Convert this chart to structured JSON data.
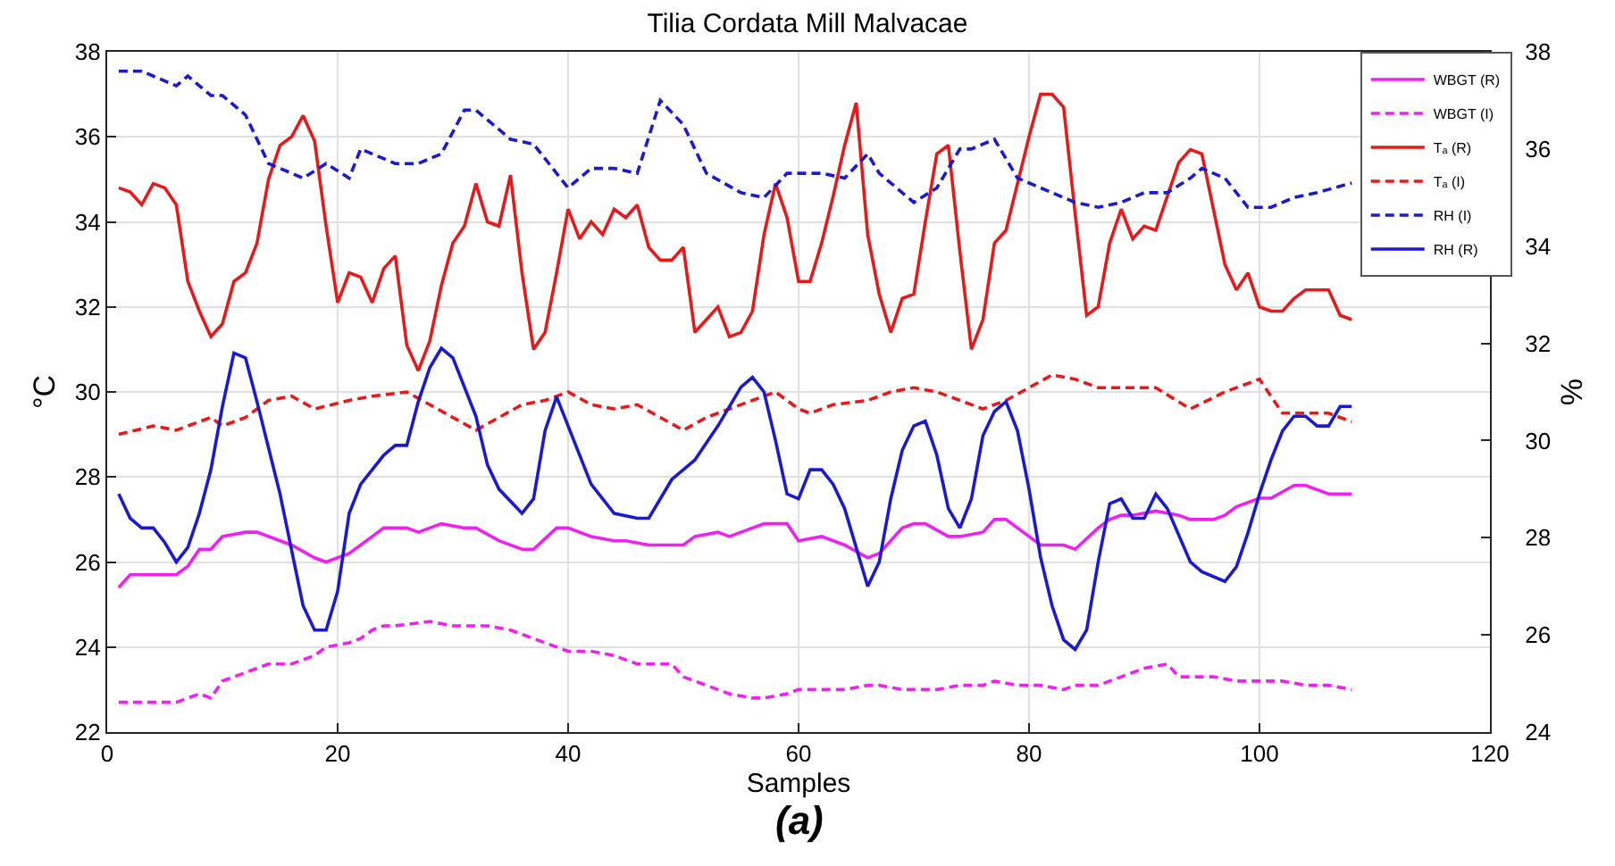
{
  "chart_data": {
    "type": "line",
    "title": "Tilia Cordata Mill Malvacae",
    "xlabel": "Samples",
    "ylabel": "°C",
    "y2label": "%",
    "xlim": [
      0,
      120
    ],
    "xticks": [
      0,
      20,
      40,
      60,
      80,
      100,
      120
    ],
    "ylim": [
      22,
      38
    ],
    "yticks": [
      22,
      24,
      26,
      28,
      30,
      32,
      34,
      36,
      38
    ],
    "y2lim": [
      24,
      38
    ],
    "y2ticks": [
      24,
      26,
      28,
      30,
      32,
      34,
      36,
      38
    ],
    "grid": true,
    "legend": "top right",
    "marker": "none",
    "annotations": [
      "(a)"
    ],
    "series": [
      {
        "name": "WBGT (R)",
        "color": "#ee22ee",
        "line_style": "solid",
        "x": [
          1,
          2,
          6,
          7,
          8,
          9,
          10,
          12,
          13,
          16,
          18,
          19,
          21,
          23,
          24,
          26,
          27,
          29,
          31,
          32,
          34,
          36,
          37,
          39,
          40,
          42,
          44,
          45,
          47,
          50,
          51,
          53,
          54,
          56,
          57,
          59,
          60,
          62,
          64,
          66,
          67,
          69,
          70,
          71,
          73,
          74,
          76,
          77,
          78,
          80,
          81,
          83,
          84,
          86,
          87,
          88,
          89,
          91,
          93,
          94,
          96,
          97,
          98,
          100,
          101,
          103,
          104,
          106,
          108
        ],
        "values": [
          25.4,
          25.7,
          25.7,
          25.9,
          26.3,
          26.3,
          26.6,
          26.7,
          26.7,
          26.4,
          26.1,
          26.0,
          26.2,
          26.6,
          26.8,
          26.8,
          26.7,
          26.9,
          26.8,
          26.8,
          26.5,
          26.3,
          26.3,
          26.8,
          26.8,
          26.6,
          26.5,
          26.5,
          26.4,
          26.4,
          26.6,
          26.7,
          26.6,
          26.8,
          26.9,
          26.9,
          26.5,
          26.6,
          26.4,
          26.1,
          26.2,
          26.8,
          26.9,
          26.9,
          26.6,
          26.6,
          26.7,
          27.0,
          27.0,
          26.6,
          26.4,
          26.4,
          26.3,
          26.8,
          27.0,
          27.1,
          27.1,
          27.2,
          27.1,
          27.0,
          27.0,
          27.1,
          27.3,
          27.5,
          27.5,
          27.8,
          27.8,
          27.6,
          27.6
        ]
      },
      {
        "name": "WBGT (I)",
        "color": "#ee22ee",
        "line_style": "dashed",
        "x": [
          1,
          6,
          8,
          9,
          10,
          12,
          14,
          16,
          18,
          19,
          21,
          22,
          23,
          24,
          25,
          28,
          30,
          31,
          33,
          35,
          36,
          38,
          40,
          42,
          44,
          46,
          48,
          49,
          50,
          52,
          54,
          56,
          57,
          59,
          60,
          62,
          64,
          66,
          67,
          69,
          70,
          72,
          74,
          76,
          77,
          79,
          81,
          83,
          84,
          86,
          88,
          90,
          92,
          93,
          95,
          96,
          98,
          100,
          102,
          104,
          106,
          108
        ],
        "values": [
          22.7,
          22.7,
          22.9,
          22.8,
          23.2,
          23.4,
          23.6,
          23.6,
          23.8,
          24.0,
          24.1,
          24.2,
          24.4,
          24.5,
          24.5,
          24.6,
          24.5,
          24.5,
          24.5,
          24.4,
          24.3,
          24.1,
          23.9,
          23.9,
          23.8,
          23.6,
          23.6,
          23.6,
          23.3,
          23.1,
          22.9,
          22.8,
          22.8,
          22.9,
          23.0,
          23.0,
          23.0,
          23.1,
          23.1,
          23.0,
          23.0,
          23.0,
          23.1,
          23.1,
          23.2,
          23.1,
          23.1,
          23.0,
          23.1,
          23.1,
          23.3,
          23.5,
          23.6,
          23.3,
          23.3,
          23.3,
          23.2,
          23.2,
          23.2,
          23.1,
          23.1,
          23.0
        ]
      },
      {
        "name": "Tₐ (R)",
        "color": "#e51a1a",
        "line_style": "solid",
        "x": [
          1,
          2,
          3,
          4,
          5,
          6,
          7,
          8,
          9,
          10,
          11,
          12,
          13,
          14,
          15,
          16,
          17,
          18,
          19,
          20,
          21,
          22,
          23,
          24,
          25,
          26,
          27,
          28,
          29,
          30,
          31,
          32,
          33,
          34,
          35,
          36,
          37,
          38,
          39,
          40,
          41,
          42,
          43,
          44,
          45,
          46,
          47,
          48,
          49,
          50,
          51,
          52,
          53,
          54,
          55,
          56,
          57,
          58,
          59,
          60,
          61,
          62,
          63,
          64,
          65,
          66,
          67,
          68,
          69,
          70,
          71,
          72,
          73,
          74,
          75,
          76,
          77,
          78,
          79,
          80,
          81,
          82,
          83,
          84,
          85,
          86,
          87,
          88,
          89,
          90,
          91,
          92,
          93,
          94,
          95,
          96,
          97,
          98,
          99,
          100,
          101,
          102,
          103,
          104,
          105,
          106,
          107,
          108
        ],
        "values": [
          34.8,
          34.7,
          34.4,
          34.9,
          34.8,
          34.4,
          32.6,
          31.9,
          31.3,
          31.6,
          32.6,
          32.8,
          33.5,
          35.0,
          35.8,
          36.0,
          36.5,
          35.9,
          33.9,
          32.1,
          32.8,
          32.7,
          32.1,
          32.9,
          33.2,
          31.1,
          30.5,
          31.2,
          32.5,
          33.5,
          33.9,
          34.9,
          34.0,
          33.9,
          35.1,
          32.8,
          31.0,
          31.4,
          32.8,
          34.3,
          33.6,
          34.0,
          33.7,
          34.3,
          34.1,
          34.4,
          33.4,
          33.1,
          33.1,
          33.4,
          31.4,
          31.7,
          32.0,
          31.3,
          31.4,
          31.9,
          33.7,
          34.9,
          34.1,
          32.6,
          32.6,
          33.5,
          34.6,
          35.8,
          36.8,
          33.7,
          32.3,
          31.4,
          32.2,
          32.3,
          34.0,
          35.6,
          35.8,
          33.3,
          31.0,
          31.7,
          33.5,
          33.8,
          34.9,
          36.0,
          37.0,
          37.0,
          36.7,
          34.2,
          31.8,
          32.0,
          33.5,
          34.3,
          33.6,
          33.9,
          33.8,
          34.6,
          35.4,
          35.7,
          35.6,
          34.3,
          33.0,
          32.4,
          32.8,
          32.0,
          31.9,
          31.9,
          32.2,
          32.4,
          32.4,
          32.4,
          31.8,
          31.7
        ]
      },
      {
        "name": "Tₐ (I)",
        "color": "#e51a1a",
        "line_style": "dashed",
        "x": [
          1,
          4,
          6,
          9,
          10,
          12,
          14,
          16,
          18,
          21,
          23,
          26,
          28,
          30,
          32,
          34,
          36,
          38,
          40,
          42,
          44,
          46,
          48,
          50,
          52,
          54,
          56,
          58,
          60,
          61,
          63,
          66,
          68,
          70,
          72,
          74,
          76,
          78,
          80,
          82,
          84,
          86,
          88,
          91,
          94,
          97,
          100,
          102,
          104,
          106,
          108
        ],
        "values": [
          29.0,
          29.2,
          29.1,
          29.4,
          29.2,
          29.4,
          29.8,
          29.9,
          29.6,
          29.8,
          29.9,
          30.0,
          29.7,
          29.4,
          29.1,
          29.4,
          29.7,
          29.8,
          30.0,
          29.7,
          29.6,
          29.7,
          29.4,
          29.1,
          29.4,
          29.6,
          29.8,
          30.0,
          29.6,
          29.5,
          29.7,
          29.8,
          30.0,
          30.1,
          30.0,
          29.8,
          29.6,
          29.8,
          30.1,
          30.4,
          30.3,
          30.1,
          30.1,
          30.1,
          29.6,
          30.0,
          30.3,
          29.5,
          29.5,
          29.5,
          29.3
        ]
      },
      {
        "name": "RH (I)",
        "color": "#1a1ad0",
        "line_style": "dashed",
        "axis": "y2",
        "x": [
          1,
          3,
          4,
          6,
          7,
          9,
          10,
          12,
          14,
          17,
          19,
          21,
          22,
          23,
          25,
          27,
          29,
          31,
          32,
          35,
          37,
          39,
          40,
          42,
          44,
          46,
          48,
          50,
          52,
          55,
          57,
          59,
          60,
          62,
          64,
          66,
          67,
          69,
          70,
          72,
          74,
          75,
          77,
          79,
          81,
          84,
          86,
          88,
          90,
          92,
          94,
          95,
          97,
          99,
          101,
          103,
          105,
          108
        ],
        "values": [
          37.6,
          37.6,
          37.5,
          37.3,
          37.5,
          37.1,
          37.1,
          36.7,
          35.7,
          35.4,
          35.7,
          35.4,
          36.0,
          35.9,
          35.7,
          35.7,
          35.9,
          36.8,
          36.8,
          36.2,
          36.1,
          35.5,
          35.2,
          35.6,
          35.6,
          35.5,
          37.0,
          36.5,
          35.5,
          35.1,
          35.0,
          35.5,
          35.5,
          35.5,
          35.4,
          35.9,
          35.5,
          35.1,
          34.9,
          35.2,
          36.0,
          36.0,
          36.2,
          35.4,
          35.2,
          34.9,
          34.8,
          34.9,
          35.1,
          35.1,
          35.4,
          35.6,
          35.4,
          34.8,
          34.8,
          35.0,
          35.1,
          35.3
        ]
      },
      {
        "name": "RH (R)",
        "color": "#1a1ad0",
        "line_style": "solid",
        "axis": "y2",
        "x": [
          1,
          2,
          3,
          4,
          5,
          6,
          7,
          8,
          9,
          10,
          11,
          12,
          13,
          15,
          17,
          18,
          19,
          20,
          21,
          22,
          24,
          25,
          26,
          27,
          28,
          29,
          30,
          32,
          33,
          34,
          36,
          37,
          38,
          39,
          40,
          42,
          44,
          46,
          47,
          48,
          49,
          50,
          51,
          53,
          55,
          56,
          57,
          58,
          59,
          60,
          61,
          62,
          63,
          64,
          65,
          66,
          67,
          68,
          69,
          70,
          71,
          72,
          73,
          74,
          75,
          76,
          77,
          78,
          79,
          80,
          81,
          82,
          83,
          84,
          85,
          86,
          87,
          88,
          89,
          90,
          91,
          92,
          94,
          95,
          97,
          98,
          99,
          100,
          101,
          102,
          103,
          104,
          105,
          106,
          107,
          108
        ],
        "values": [
          28.9,
          28.4,
          28.2,
          28.2,
          27.9,
          27.5,
          27.8,
          28.5,
          29.4,
          30.7,
          31.8,
          31.7,
          30.8,
          28.9,
          26.6,
          26.1,
          26.1,
          26.9,
          28.5,
          29.1,
          29.7,
          29.9,
          29.9,
          30.8,
          31.5,
          31.9,
          31.7,
          30.5,
          29.5,
          29.0,
          28.5,
          28.8,
          30.2,
          30.9,
          30.3,
          29.1,
          28.5,
          28.4,
          28.4,
          28.8,
          29.2,
          29.4,
          29.6,
          30.3,
          31.1,
          31.3,
          31.0,
          30.0,
          28.9,
          28.8,
          29.4,
          29.4,
          29.1,
          28.6,
          27.8,
          27.0,
          27.5,
          28.8,
          29.8,
          30.3,
          30.4,
          29.7,
          28.6,
          28.2,
          28.8,
          30.1,
          30.6,
          30.8,
          30.2,
          29.0,
          27.6,
          26.6,
          25.9,
          25.7,
          26.1,
          27.5,
          28.7,
          28.8,
          28.4,
          28.4,
          28.9,
          28.6,
          27.5,
          27.3,
          27.1,
          27.4,
          28.1,
          28.9,
          29.6,
          30.2,
          30.5,
          30.5,
          30.3,
          30.3,
          30.7,
          30.7
        ]
      }
    ]
  }
}
